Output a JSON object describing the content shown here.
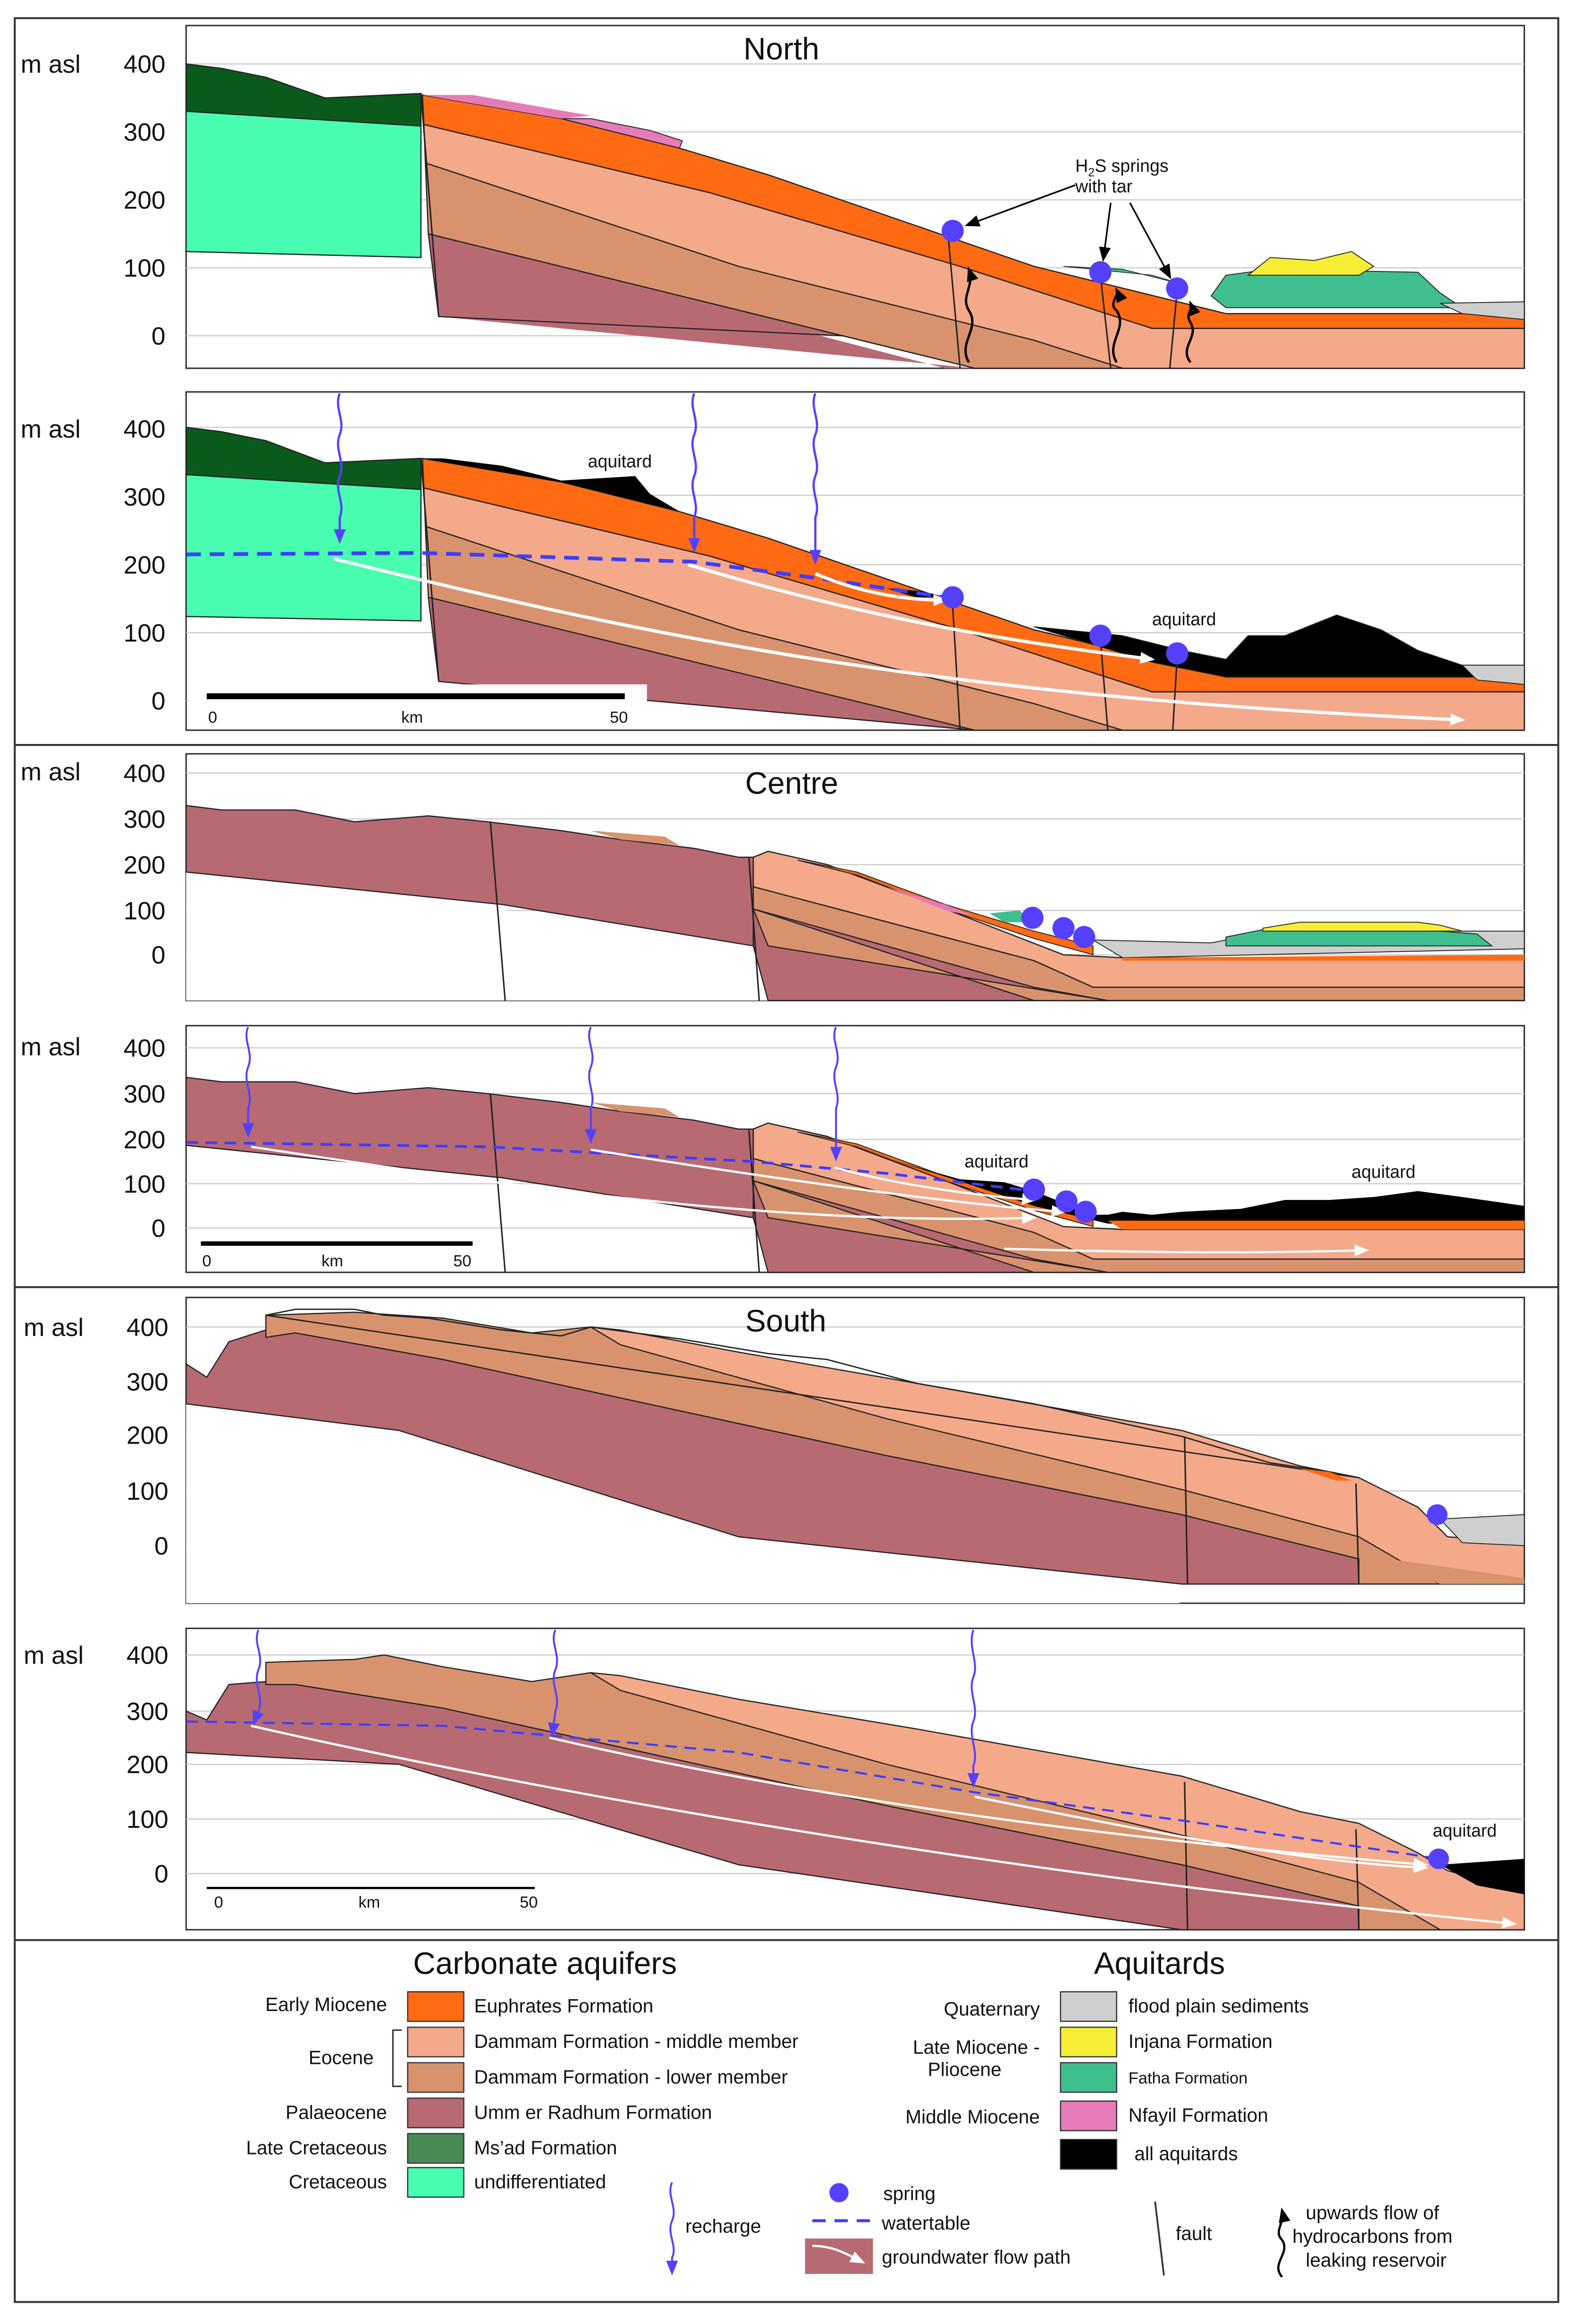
{
  "sections": {
    "north": {
      "title": "North"
    },
    "centre": {
      "title": "Centre"
    },
    "south": {
      "title": "South"
    }
  },
  "axis": {
    "unit": "m asl",
    "ticks": [
      "400",
      "300",
      "200",
      "100",
      "0"
    ]
  },
  "annotations": {
    "springs_h2s_line1": "H",
    "springs_h2s_sub": "2",
    "springs_h2s_rest": "S springs",
    "springs_h2s_line2": "with tar",
    "aquitard": "aquitard"
  },
  "scalebar": {
    "start": "0",
    "unit": "km",
    "end": "50"
  },
  "legend": {
    "carbonate_title": "Carbonate aquifers",
    "aquitards_title": "Aquitards",
    "carbonate": [
      {
        "age": "Early Miocene",
        "name": "Euphrates Formation",
        "color": "#ff6a13"
      },
      {
        "age": "",
        "name": "Dammam Formation - middle member",
        "color": "#f4a98a"
      },
      {
        "age": "",
        "name": "Dammam Formation - lower member",
        "color": "#d8936e"
      },
      {
        "age": "Palaeocene",
        "name": "Umm er Radhum Formation",
        "color": "#b86a72"
      },
      {
        "age": "Late Cretaceous",
        "name": "Ms’ad Formation",
        "color": "#4a8a55"
      },
      {
        "age": "Cretaceous",
        "name": "undifferentiated",
        "color": "#48fdb0"
      }
    ],
    "eocene_label": "Eocene",
    "aquitards": [
      {
        "age": "Quaternary",
        "name": "flood plain sediments",
        "color": "#cfcfcf"
      },
      {
        "age": "",
        "name": "Injana Formation",
        "color": "#f6ee35"
      },
      {
        "age": "",
        "name": "Fatha Formation",
        "color": "#3fbf8e"
      },
      {
        "age": "Middle Miocene",
        "name": "Nfayil Formation",
        "color": "#e77bb8"
      },
      {
        "age": "",
        "name": "all aquitards",
        "color": "#000000"
      }
    ],
    "late_miocene_line1": "Late Miocene -",
    "late_miocene_line2": "Pliocene",
    "symbols": {
      "recharge": "recharge",
      "spring": "spring",
      "watertable": "watertable",
      "flowpath": "groundwater flow path",
      "fault": "fault",
      "hydrocarbon_line1": "upwards flow of",
      "hydrocarbon_line2": "hydrocarbons from",
      "hydrocarbon_line3": "leaking reservoir"
    }
  }
}
